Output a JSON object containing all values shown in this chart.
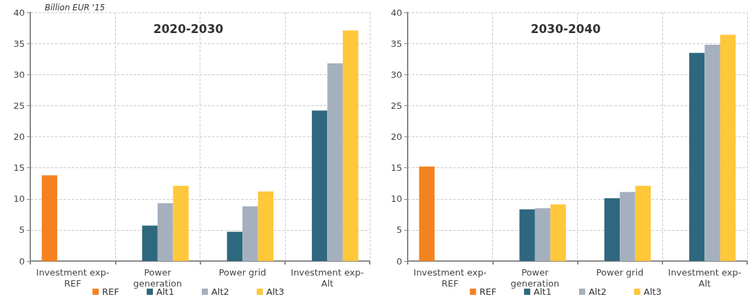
{
  "chart_data": [
    {
      "type": "bar",
      "title": "2020-2030",
      "ylabel": "Billion EUR '15",
      "categories": [
        "Investment exp-\nREF",
        "Power\ngeneration",
        "Power grid",
        "Investment exp-\nAlt"
      ],
      "series": [
        {
          "name": "REF",
          "color": "#f58220",
          "values": [
            13.8,
            null,
            null,
            null
          ]
        },
        {
          "name": "Alt1",
          "color": "#2e687e",
          "values": [
            null,
            5.7,
            4.7,
            24.2
          ]
        },
        {
          "name": "Alt2",
          "color": "#a5b0be",
          "values": [
            null,
            9.3,
            8.8,
            31.8
          ]
        },
        {
          "name": "Alt3",
          "color": "#ffc73a",
          "values": [
            null,
            12.1,
            11.2,
            37.1
          ]
        }
      ],
      "ylim": [
        0,
        40
      ],
      "yticks": [
        0,
        5,
        10,
        15,
        20,
        25,
        30,
        35,
        40
      ],
      "grid": true,
      "legend": "bottom"
    },
    {
      "type": "bar",
      "title": "2030-2040",
      "categories": [
        "Investment exp-\nREF",
        "Power\ngeneration",
        "Power grid",
        "Investment exp-\nAlt"
      ],
      "series": [
        {
          "name": "REF",
          "color": "#f58220",
          "values": [
            15.2,
            null,
            null,
            null
          ]
        },
        {
          "name": "Alt1",
          "color": "#2e687e",
          "values": [
            null,
            8.3,
            10.1,
            33.5
          ]
        },
        {
          "name": "Alt2",
          "color": "#a5b0be",
          "values": [
            null,
            8.5,
            11.1,
            34.8
          ]
        },
        {
          "name": "Alt3",
          "color": "#ffc73a",
          "values": [
            null,
            9.1,
            12.1,
            36.4
          ]
        }
      ],
      "ylim": [
        0,
        40
      ],
      "yticks": [
        0,
        5,
        10,
        15,
        20,
        25,
        30,
        35,
        40
      ],
      "grid": true,
      "legend": "bottom"
    }
  ]
}
